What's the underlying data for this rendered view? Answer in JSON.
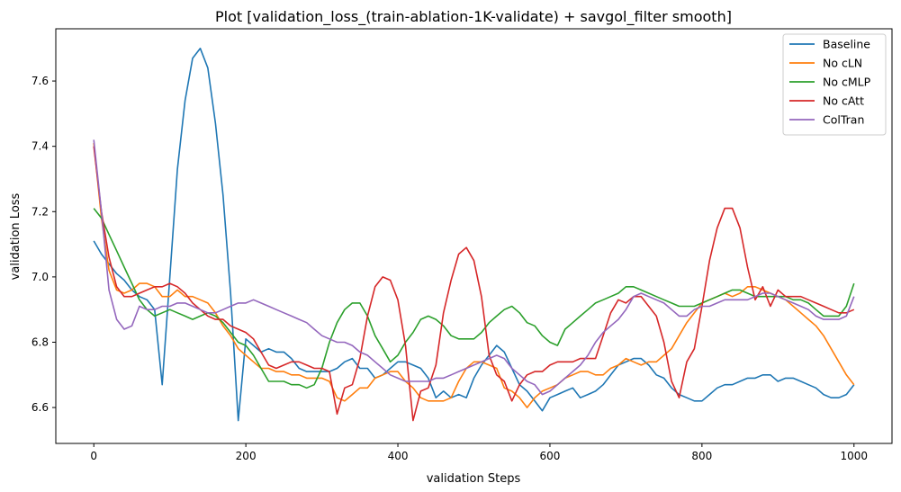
{
  "chart_data": {
    "type": "line",
    "title": "Plot [validation_loss_(train-ablation-1K-validate) + savgol_filter smooth]",
    "xlabel": "validation Steps",
    "ylabel": "validation Loss",
    "xlim": [
      -50,
      1050
    ],
    "ylim": [
      6.49,
      7.76
    ],
    "xticks": [
      0,
      200,
      400,
      600,
      800,
      1000
    ],
    "yticks": [
      6.6,
      6.8,
      7.0,
      7.2,
      7.4,
      7.6
    ],
    "grid": false,
    "legend_position": "top-right",
    "x": [
      0,
      10,
      20,
      30,
      40,
      50,
      60,
      70,
      80,
      90,
      100,
      110,
      120,
      130,
      140,
      150,
      160,
      170,
      180,
      190,
      200,
      210,
      220,
      230,
      240,
      250,
      260,
      270,
      280,
      290,
      300,
      310,
      320,
      330,
      340,
      350,
      360,
      370,
      380,
      390,
      400,
      410,
      420,
      430,
      440,
      450,
      460,
      470,
      480,
      490,
      500,
      510,
      520,
      530,
      540,
      550,
      560,
      570,
      580,
      590,
      600,
      610,
      620,
      630,
      640,
      650,
      660,
      670,
      680,
      690,
      700,
      710,
      720,
      730,
      740,
      750,
      760,
      770,
      780,
      790,
      800,
      810,
      820,
      830,
      840,
      850,
      860,
      870,
      880,
      890,
      900,
      910,
      920,
      930,
      940,
      950,
      960,
      970,
      980,
      990,
      1000
    ],
    "series": [
      {
        "name": "Baseline",
        "color": "#1f77b4",
        "values": [
          7.11,
          7.07,
          7.04,
          7.01,
          6.99,
          6.96,
          6.94,
          6.93,
          6.9,
          6.67,
          7.0,
          7.33,
          7.54,
          7.67,
          7.7,
          7.64,
          7.47,
          7.25,
          6.95,
          6.56,
          6.81,
          6.79,
          6.77,
          6.78,
          6.77,
          6.77,
          6.75,
          6.72,
          6.71,
          6.71,
          6.71,
          6.71,
          6.72,
          6.74,
          6.75,
          6.72,
          6.72,
          6.69,
          6.7,
          6.72,
          6.74,
          6.74,
          6.73,
          6.72,
          6.69,
          6.63,
          6.65,
          6.63,
          6.64,
          6.63,
          6.69,
          6.73,
          6.76,
          6.79,
          6.77,
          6.72,
          6.67,
          6.65,
          6.62,
          6.59,
          6.63,
          6.64,
          6.65,
          6.66,
          6.63,
          6.64,
          6.65,
          6.67,
          6.7,
          6.73,
          6.74,
          6.75,
          6.75,
          6.73,
          6.7,
          6.69,
          6.66,
          6.64,
          6.63,
          6.62,
          6.62,
          6.64,
          6.66,
          6.67,
          6.67,
          6.68,
          6.69,
          6.69,
          6.7,
          6.7,
          6.68,
          6.69,
          6.69,
          6.68,
          6.67,
          6.66,
          6.64,
          6.63,
          6.63,
          6.64,
          6.67
        ]
      },
      {
        "name": "No cLN",
        "color": "#ff7f0e",
        "values": [
          7.41,
          7.18,
          7.02,
          6.96,
          6.95,
          6.96,
          6.98,
          6.98,
          6.97,
          6.94,
          6.94,
          6.96,
          6.94,
          6.94,
          6.93,
          6.92,
          6.89,
          6.85,
          6.82,
          6.78,
          6.76,
          6.74,
          6.72,
          6.72,
          6.71,
          6.71,
          6.7,
          6.7,
          6.69,
          6.69,
          6.69,
          6.68,
          6.63,
          6.62,
          6.64,
          6.66,
          6.66,
          6.69,
          6.7,
          6.71,
          6.71,
          6.68,
          6.66,
          6.63,
          6.62,
          6.62,
          6.62,
          6.63,
          6.68,
          6.72,
          6.74,
          6.74,
          6.73,
          6.72,
          6.66,
          6.65,
          6.63,
          6.6,
          6.63,
          6.65,
          6.66,
          6.67,
          6.69,
          6.7,
          6.71,
          6.71,
          6.7,
          6.7,
          6.72,
          6.73,
          6.75,
          6.74,
          6.73,
          6.74,
          6.74,
          6.76,
          6.78,
          6.82,
          6.86,
          6.89,
          6.92,
          6.93,
          6.94,
          6.95,
          6.94,
          6.95,
          6.97,
          6.97,
          6.96,
          6.95,
          6.94,
          6.93,
          6.91,
          6.89,
          6.87,
          6.85,
          6.82,
          6.78,
          6.74,
          6.7,
          6.67
        ]
      },
      {
        "name": "No cMLP",
        "color": "#2ca02c",
        "values": [
          7.21,
          7.18,
          7.13,
          7.08,
          7.03,
          6.98,
          6.93,
          6.9,
          6.88,
          6.89,
          6.9,
          6.89,
          6.88,
          6.87,
          6.88,
          6.89,
          6.88,
          6.86,
          6.83,
          6.8,
          6.79,
          6.76,
          6.72,
          6.68,
          6.68,
          6.68,
          6.67,
          6.67,
          6.66,
          6.67,
          6.72,
          6.8,
          6.86,
          6.9,
          6.92,
          6.92,
          6.88,
          6.82,
          6.78,
          6.74,
          6.76,
          6.8,
          6.83,
          6.87,
          6.88,
          6.87,
          6.85,
          6.82,
          6.81,
          6.81,
          6.81,
          6.83,
          6.86,
          6.88,
          6.9,
          6.91,
          6.89,
          6.86,
          6.85,
          6.82,
          6.8,
          6.79,
          6.84,
          6.86,
          6.88,
          6.9,
          6.92,
          6.93,
          6.94,
          6.95,
          6.97,
          6.97,
          6.96,
          6.95,
          6.94,
          6.93,
          6.92,
          6.91,
          6.91,
          6.91,
          6.92,
          6.93,
          6.94,
          6.95,
          6.96,
          6.96,
          6.95,
          6.94,
          6.94,
          6.94,
          6.94,
          6.94,
          6.93,
          6.93,
          6.92,
          6.9,
          6.88,
          6.88,
          6.88,
          6.91,
          6.98
        ]
      },
      {
        "name": "No cAtt",
        "color": "#d62728",
        "values": [
          7.4,
          7.2,
          7.06,
          6.97,
          6.94,
          6.94,
          6.95,
          6.96,
          6.97,
          6.97,
          6.98,
          6.97,
          6.95,
          6.92,
          6.9,
          6.88,
          6.87,
          6.87,
          6.85,
          6.84,
          6.83,
          6.81,
          6.77,
          6.73,
          6.72,
          6.73,
          6.74,
          6.74,
          6.73,
          6.72,
          6.72,
          6.71,
          6.58,
          6.66,
          6.67,
          6.75,
          6.88,
          6.97,
          7.0,
          6.99,
          6.93,
          6.79,
          6.56,
          6.65,
          6.66,
          6.73,
          6.89,
          6.99,
          7.07,
          7.09,
          7.05,
          6.94,
          6.76,
          6.7,
          6.68,
          6.62,
          6.67,
          6.7,
          6.71,
          6.71,
          6.73,
          6.74,
          6.74,
          6.74,
          6.75,
          6.75,
          6.75,
          6.82,
          6.89,
          6.93,
          6.92,
          6.94,
          6.94,
          6.91,
          6.88,
          6.8,
          6.68,
          6.63,
          6.74,
          6.78,
          6.91,
          7.05,
          7.15,
          7.21,
          7.21,
          7.15,
          7.03,
          6.93,
          6.97,
          6.91,
          6.96,
          6.94,
          6.94,
          6.94,
          6.93,
          6.92,
          6.91,
          6.9,
          6.89,
          6.89,
          6.9
        ]
      },
      {
        "name": "ColTran",
        "color": "#9467bd",
        "values": [
          7.42,
          7.2,
          6.96,
          6.87,
          6.84,
          6.85,
          6.91,
          6.9,
          6.9,
          6.91,
          6.91,
          6.92,
          6.92,
          6.91,
          6.9,
          6.89,
          6.89,
          6.9,
          6.91,
          6.92,
          6.92,
          6.93,
          6.92,
          6.91,
          6.9,
          6.89,
          6.88,
          6.87,
          6.86,
          6.84,
          6.82,
          6.81,
          6.8,
          6.8,
          6.79,
          6.77,
          6.76,
          6.74,
          6.72,
          6.7,
          6.69,
          6.68,
          6.68,
          6.68,
          6.68,
          6.69,
          6.69,
          6.7,
          6.71,
          6.72,
          6.73,
          6.74,
          6.75,
          6.76,
          6.75,
          6.72,
          6.7,
          6.68,
          6.67,
          6.64,
          6.65,
          6.67,
          6.69,
          6.71,
          6.73,
          6.76,
          6.8,
          6.83,
          6.85,
          6.87,
          6.9,
          6.94,
          6.95,
          6.94,
          6.93,
          6.92,
          6.9,
          6.88,
          6.88,
          6.9,
          6.91,
          6.91,
          6.92,
          6.93,
          6.93,
          6.93,
          6.93,
          6.94,
          6.95,
          6.95,
          6.94,
          6.93,
          6.92,
          6.91,
          6.9,
          6.88,
          6.87,
          6.87,
          6.87,
          6.88,
          6.94
        ]
      }
    ]
  }
}
